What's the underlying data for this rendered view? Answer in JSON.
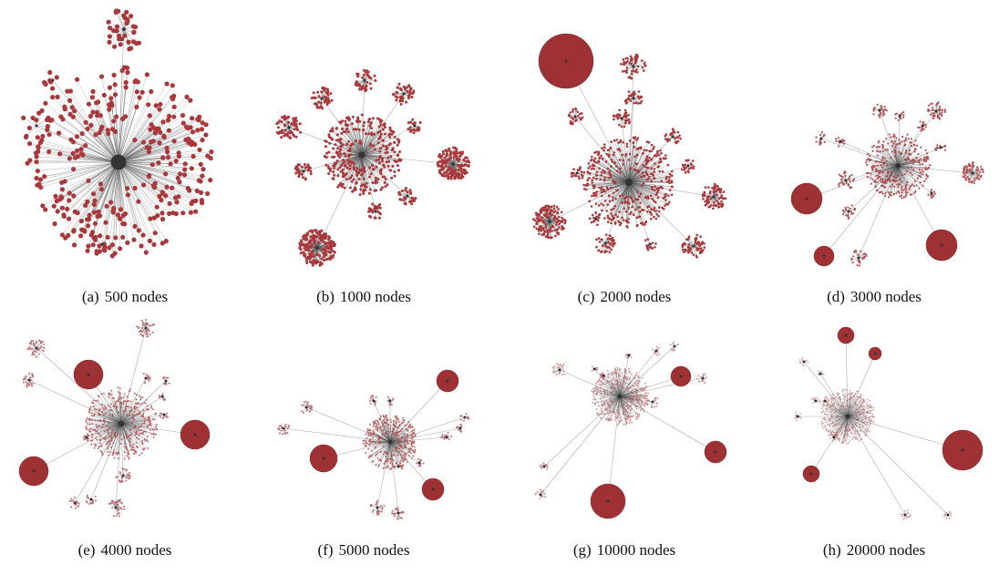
{
  "figure": {
    "node_color": "#a8383b",
    "edge_color": "#8a8a8a",
    "panels": [
      {
        "label": "(a)",
        "caption": "500 nodes"
      },
      {
        "label": "(b)",
        "caption": "1000 nodes"
      },
      {
        "label": "(c)",
        "caption": "2000 nodes"
      },
      {
        "label": "(d)",
        "caption": "3000 nodes"
      },
      {
        "label": "(e)",
        "caption": "4000 nodes"
      },
      {
        "label": "(f)",
        "caption": "5000 nodes"
      },
      {
        "label": "(g)",
        "caption": "10000 nodes"
      },
      {
        "label": "(h)",
        "caption": "20000 nodes"
      }
    ]
  }
}
